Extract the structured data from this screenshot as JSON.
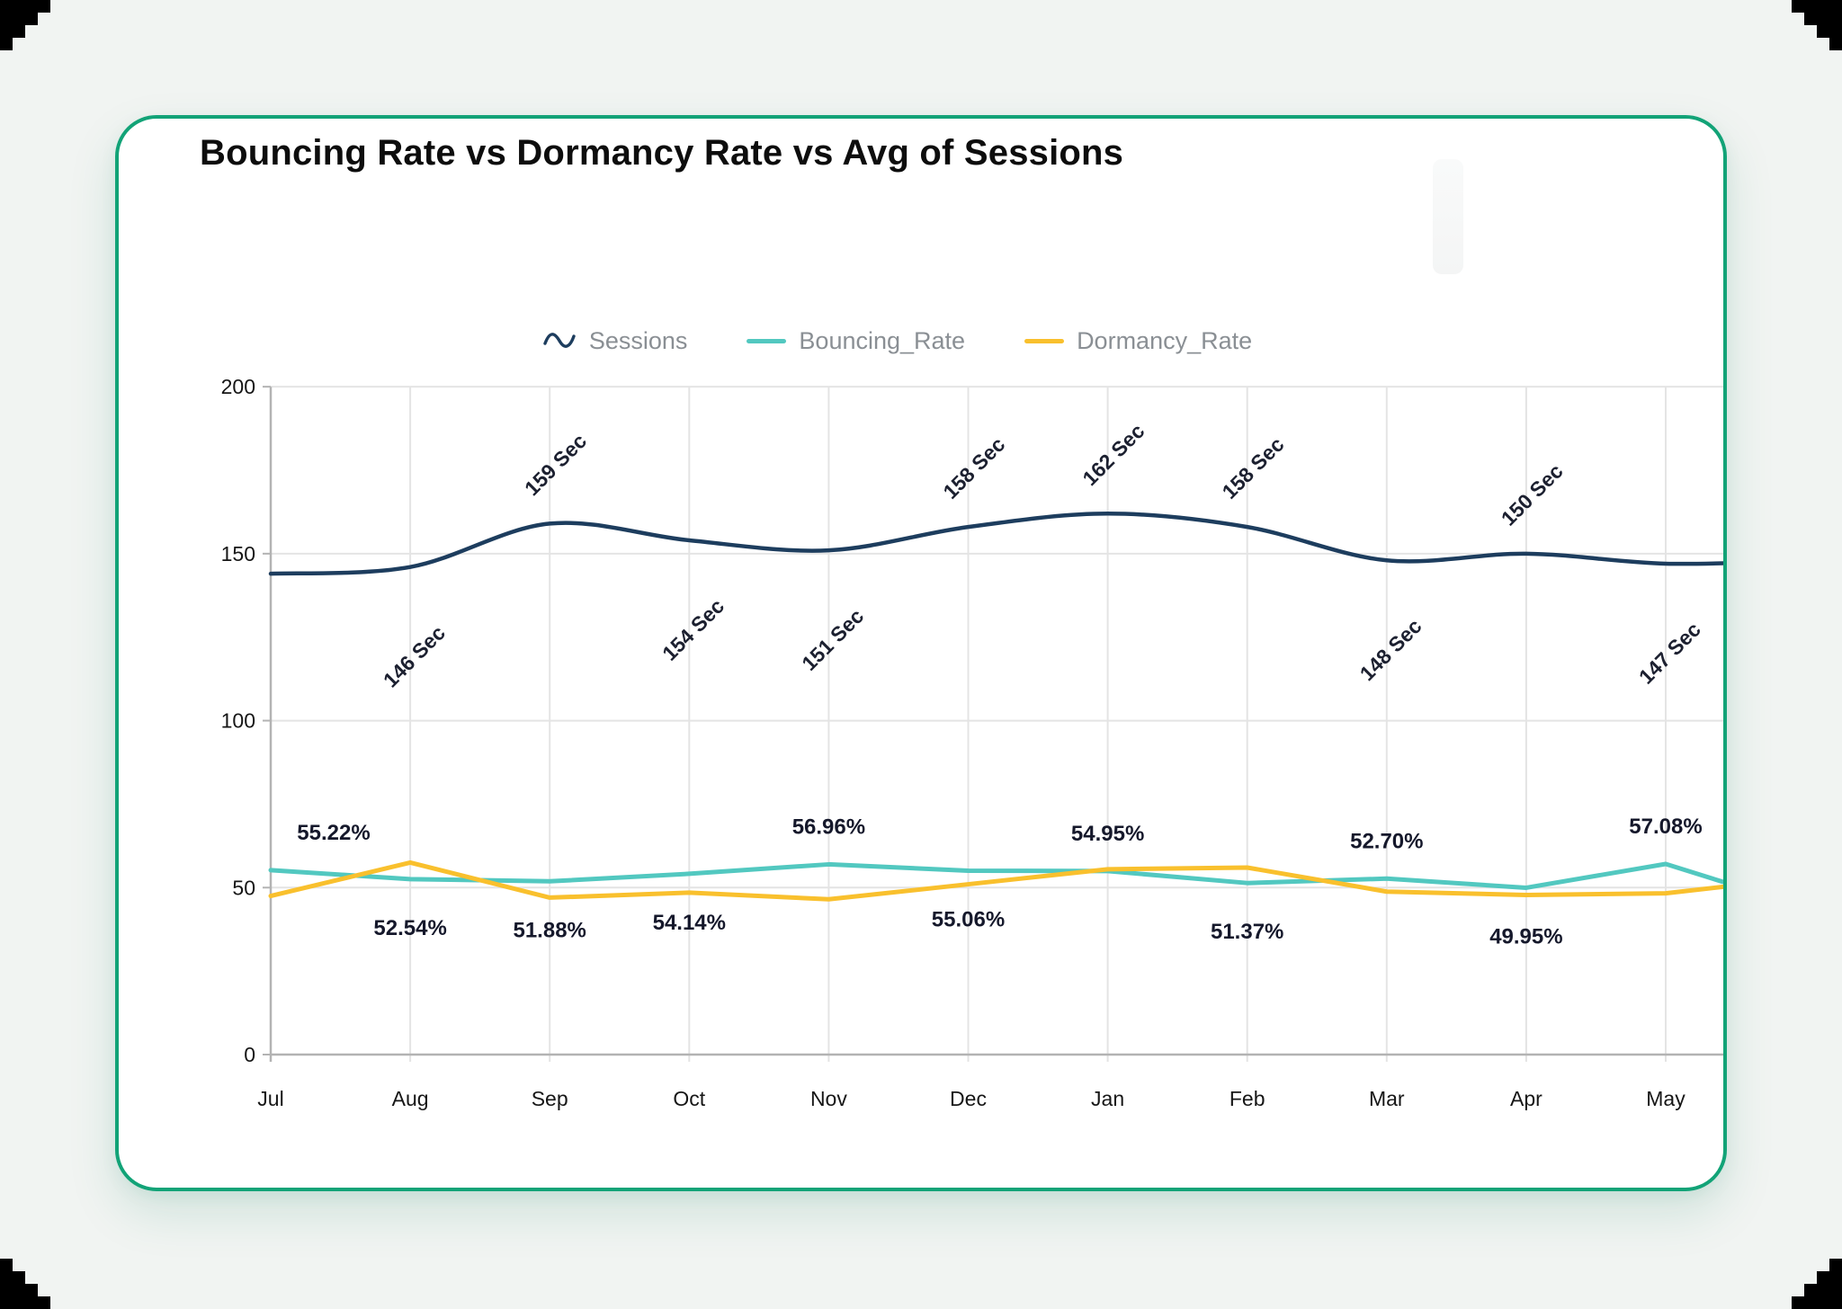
{
  "canvas": {
    "background": "#f1f4f2",
    "corner_marker_color": "#000000"
  },
  "card": {
    "background": "#ffffff",
    "border_color": "#12a377",
    "title": "Bouncing Rate vs Dormancy Rate vs Avg of Sessions",
    "title_color": "#0d0d0d"
  },
  "legend": {
    "text_color": "#8a8f94",
    "items": [
      {
        "label": "Sessions",
        "icon": "wave-icon",
        "color": "#1d3d5e"
      },
      {
        "label": "Bouncing_Rate",
        "icon": "line-dash",
        "color": "#52c8c0"
      },
      {
        "label": "Dormancy_Rate",
        "icon": "line-dash",
        "color": "#f9c02d"
      }
    ]
  },
  "chart_data": {
    "type": "line",
    "title": "Bouncing Rate vs Dormancy Rate vs Avg of Sessions",
    "categories": [
      "Jul",
      "Aug",
      "Sep",
      "Oct",
      "Nov",
      "Dec",
      "Jan",
      "Feb",
      "Mar",
      "Apr",
      "May"
    ],
    "y_axis": {
      "min": 0,
      "max": 200,
      "ticks": [
        "0",
        "50",
        "100",
        "150",
        "200"
      ]
    },
    "grid": true,
    "legend_position": "top-center",
    "series": [
      {
        "name": "Sessions",
        "color": "#1d3d5e",
        "style": "smooth",
        "unit": "Sec",
        "values": [
          144,
          146,
          159,
          154,
          151,
          158,
          162,
          158,
          148,
          150,
          147
        ],
        "point_labels": [
          "",
          "146 Sec",
          "159 Sec",
          "154 Sec",
          "151 Sec",
          "158 Sec",
          "162 Sec",
          "158 Sec",
          "148 Sec",
          "150 Sec",
          "147 Sec"
        ],
        "label_side": [
          "",
          "below",
          "above",
          "below",
          "below",
          "above",
          "above",
          "above",
          "below",
          "above",
          "below"
        ],
        "clipped_next_value": 148
      },
      {
        "name": "Bouncing_Rate",
        "color": "#52c8c0",
        "style": "straight",
        "unit": "%",
        "values": [
          55.22,
          52.54,
          51.88,
          54.14,
          56.96,
          55.06,
          54.95,
          51.37,
          52.7,
          49.95,
          57.08
        ],
        "point_labels": [
          "55.22%",
          "52.54%",
          "51.88%",
          "54.14%",
          "56.96%",
          "55.06%",
          "54.95%",
          "51.37%",
          "52.70%",
          "49.95%",
          "57.08%"
        ],
        "label_side": [
          "above",
          "below",
          "below",
          "below",
          "above",
          "below",
          "above",
          "below",
          "above",
          "below",
          "above"
        ],
        "clipped_next_value": 44
      },
      {
        "name": "Dormancy_Rate",
        "color": "#f9c02d",
        "style": "straight",
        "unit": "%",
        "values": [
          47.5,
          57.5,
          47.0,
          48.5,
          46.5,
          51.0,
          55.5,
          56.0,
          48.8,
          47.8,
          48.3
        ],
        "point_labels": null,
        "label_side": null,
        "clipped_next_value": 53
      }
    ]
  }
}
